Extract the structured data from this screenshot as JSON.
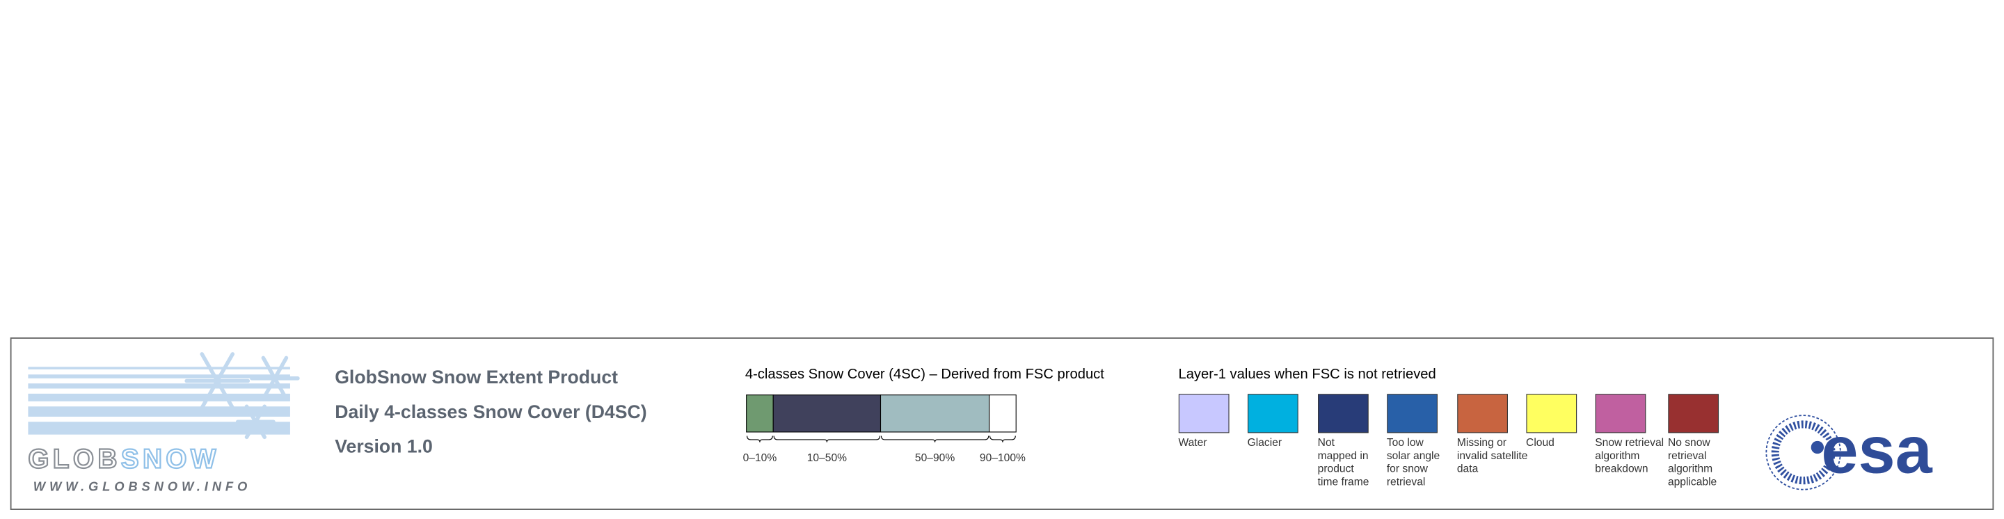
{
  "header": {
    "lines": [
      "GlobSnow Snow Extent Product",
      "Daily 4-classes Snow Cover (D4SC)",
      "Version 1.0"
    ]
  },
  "logo": {
    "name_parts": [
      "GLOB",
      "SNOW"
    ],
    "url": "WWW.GLOBSNOW.INFO"
  },
  "snow_cover": {
    "title": "4-classes Snow Cover (4SC) – Derived from FSC product",
    "classes": [
      {
        "label": "0–10%",
        "color": "#6f9a70"
      },
      {
        "label": "10–50%",
        "color": "#40415c"
      },
      {
        "label": "50–90%",
        "color": "#a0bcc0"
      },
      {
        "label": "90–100%",
        "color": "#ffffff"
      }
    ]
  },
  "layer1": {
    "title": "Layer-1 values when FSC is not retrieved",
    "items": [
      {
        "lines": [
          "Water"
        ],
        "color": "#c8c8ff"
      },
      {
        "lines": [
          "Glacier"
        ],
        "color": "#00b0e0"
      },
      {
        "lines": [
          "Not",
          "mapped in",
          "product",
          "time frame"
        ],
        "color": "#283c78"
      },
      {
        "lines": [
          "Too low",
          "solar angle",
          "for snow",
          "retrieval"
        ],
        "color": "#2860a8"
      },
      {
        "lines": [
          "Missing or",
          "invalid satellite",
          "data"
        ],
        "color": "#c86440"
      },
      {
        "lines": [
          "Cloud"
        ],
        "color": "#ffff60"
      },
      {
        "lines": [
          "Snow retrieval",
          "algorithm",
          "breakdown"
        ],
        "color": "#c060a0"
      },
      {
        "lines": [
          "No snow",
          "retrieval",
          "algorithm",
          "applicable"
        ],
        "color": "#983030"
      }
    ]
  },
  "agency_logo": {
    "text": "esa"
  }
}
